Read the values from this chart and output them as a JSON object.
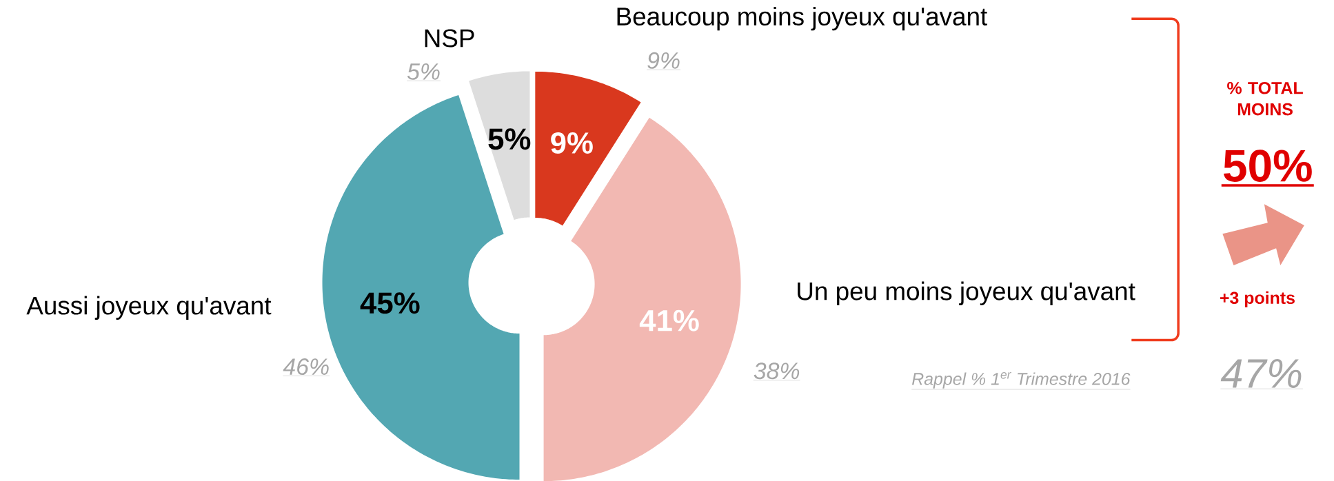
{
  "chart_data": {
    "type": "donut",
    "categories": [
      "Beaucoup moins joyeux qu'avant",
      "Un peu moins joyeux qu'avant",
      "Aussi joyeux qu'avant",
      "NSP"
    ],
    "values": [
      9,
      41,
      45,
      5
    ],
    "colors": [
      "#d9381e",
      "#f2b8b2",
      "#53a7b2",
      "#dddddd"
    ],
    "value_labels": [
      "9%",
      "41%",
      "45%",
      "5%"
    ],
    "annotations": [
      "9%",
      "38%",
      "46%",
      "5%",
      "Rappel % 1$^{er}$ Trimestre 2016",
      "47%",
      "% TOTAL MOINS",
      "50%",
      "+3 points"
    ]
  }
}
